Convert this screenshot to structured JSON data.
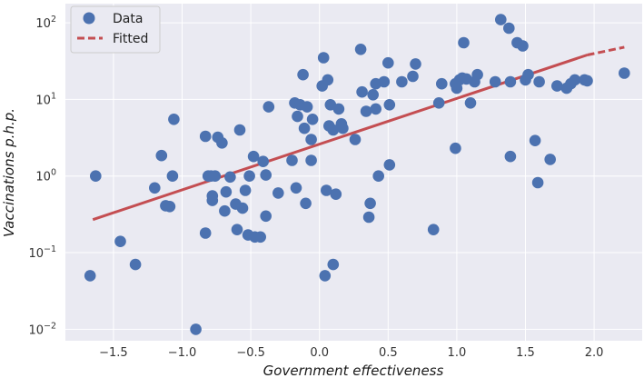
{
  "chart_data": {
    "type": "scatter",
    "xlabel": "Government effectiveness",
    "ylabel": "Vaccinations p.h.p.",
    "xlim": [
      -1.85,
      2.35
    ],
    "ylim_log10": [
      -2.15,
      2.25
    ],
    "y_scale": "log",
    "grid": true,
    "legend_position": "top-left",
    "x_ticks": [
      {
        "value": -1.5,
        "label": "−1.5"
      },
      {
        "value": -1.0,
        "label": "−1.0"
      },
      {
        "value": -0.5,
        "label": "−0.5"
      },
      {
        "value": 0.0,
        "label": "0.0"
      },
      {
        "value": 0.5,
        "label": "0.5"
      },
      {
        "value": 1.0,
        "label": "1.0"
      },
      {
        "value": 1.5,
        "label": "1.5"
      },
      {
        "value": 2.0,
        "label": "2.0"
      }
    ],
    "y_ticks": [
      {
        "value": 0.01,
        "base": "10",
        "exp": "−2"
      },
      {
        "value": 0.1,
        "base": "10",
        "exp": "−1"
      },
      {
        "value": 1,
        "base": "10",
        "exp": "0"
      },
      {
        "value": 10,
        "base": "10",
        "exp": "1"
      },
      {
        "value": 100,
        "base": "10",
        "exp": "2"
      }
    ],
    "series": [
      {
        "name": "Data",
        "kind": "scatter",
        "color": "#4c72b0",
        "points": [
          [
            -1.67,
            0.05
          ],
          [
            -1.63,
            1.0
          ],
          [
            -1.45,
            0.14
          ],
          [
            -1.34,
            0.07
          ],
          [
            -1.2,
            0.7
          ],
          [
            -1.15,
            1.85
          ],
          [
            -1.12,
            0.41
          ],
          [
            -1.09,
            0.4
          ],
          [
            -1.07,
            1.0
          ],
          [
            -1.06,
            5.5
          ],
          [
            -0.9,
            0.01
          ],
          [
            -0.83,
            3.3
          ],
          [
            -0.83,
            0.18
          ],
          [
            -0.81,
            1.0
          ],
          [
            -0.79,
            1.0
          ],
          [
            -0.78,
            0.55
          ],
          [
            -0.78,
            0.48
          ],
          [
            -0.76,
            1.0
          ],
          [
            -0.74,
            3.2
          ],
          [
            -0.71,
            2.7
          ],
          [
            -0.69,
            0.35
          ],
          [
            -0.68,
            0.62
          ],
          [
            -0.65,
            0.97
          ],
          [
            -0.61,
            0.43
          ],
          [
            -0.6,
            0.2
          ],
          [
            -0.58,
            4.0
          ],
          [
            -0.56,
            0.38
          ],
          [
            -0.54,
            0.65
          ],
          [
            -0.52,
            0.17
          ],
          [
            -0.51,
            1.0
          ],
          [
            -0.48,
            1.8
          ],
          [
            -0.47,
            0.16
          ],
          [
            -0.43,
            0.16
          ],
          [
            -0.41,
            1.55
          ],
          [
            -0.39,
            0.3
          ],
          [
            -0.39,
            1.03
          ],
          [
            -0.37,
            8.0
          ],
          [
            -0.3,
            0.6
          ],
          [
            -0.2,
            1.6
          ],
          [
            -0.18,
            9.0
          ],
          [
            -0.17,
            0.7
          ],
          [
            -0.16,
            6.0
          ],
          [
            -0.14,
            8.5
          ],
          [
            -0.12,
            21.0
          ],
          [
            -0.11,
            4.2
          ],
          [
            -0.1,
            0.44
          ],
          [
            -0.09,
            8.0
          ],
          [
            -0.06,
            1.6
          ],
          [
            -0.05,
            5.5
          ],
          [
            -0.06,
            3.0
          ],
          [
            0.02,
            15.0
          ],
          [
            0.03,
            35.0
          ],
          [
            0.05,
            0.65
          ],
          [
            0.04,
            0.05
          ],
          [
            0.06,
            18.0
          ],
          [
            0.07,
            4.5
          ],
          [
            0.08,
            8.5
          ],
          [
            0.1,
            4.0
          ],
          [
            0.1,
            0.07
          ],
          [
            0.12,
            0.58
          ],
          [
            0.14,
            7.5
          ],
          [
            0.16,
            4.8
          ],
          [
            0.17,
            4.2
          ],
          [
            0.26,
            3.0
          ],
          [
            0.3,
            45.0
          ],
          [
            0.31,
            12.5
          ],
          [
            0.34,
            7.0
          ],
          [
            0.36,
            0.29
          ],
          [
            0.37,
            0.44
          ],
          [
            0.39,
            11.5
          ],
          [
            0.41,
            16.0
          ],
          [
            0.41,
            7.5
          ],
          [
            0.43,
            1.0
          ],
          [
            0.47,
            17.0
          ],
          [
            0.5,
            30.0
          ],
          [
            0.51,
            1.4
          ],
          [
            0.51,
            8.5
          ],
          [
            0.6,
            17.0
          ],
          [
            0.68,
            20.0
          ],
          [
            0.7,
            29.0
          ],
          [
            0.83,
            0.2
          ],
          [
            0.87,
            9.0
          ],
          [
            0.89,
            16.0
          ],
          [
            0.99,
            2.3
          ],
          [
            0.99,
            16.0
          ],
          [
            1.0,
            14.0
          ],
          [
            1.02,
            18.0
          ],
          [
            1.04,
            19.0
          ],
          [
            1.05,
            55.0
          ],
          [
            1.07,
            18.5
          ],
          [
            1.1,
            9.0
          ],
          [
            1.13,
            17.0
          ],
          [
            1.15,
            21.0
          ],
          [
            1.28,
            17.0
          ],
          [
            1.32,
            110.0
          ],
          [
            1.38,
            85.0
          ],
          [
            1.39,
            1.8
          ],
          [
            1.39,
            17.0
          ],
          [
            1.44,
            55.0
          ],
          [
            1.48,
            50.0
          ],
          [
            1.5,
            18.0
          ],
          [
            1.52,
            21.0
          ],
          [
            1.57,
            2.9
          ],
          [
            1.59,
            0.82
          ],
          [
            1.6,
            17.0
          ],
          [
            1.68,
            1.65
          ],
          [
            1.73,
            15.0
          ],
          [
            1.8,
            14.0
          ],
          [
            1.83,
            16.0
          ],
          [
            1.86,
            18.0
          ],
          [
            1.93,
            18.0
          ],
          [
            1.95,
            17.5
          ],
          [
            2.22,
            22.0
          ]
        ]
      },
      {
        "name": "Fitted",
        "kind": "line",
        "style": "dashed",
        "color": "#c44e52",
        "x": [
          -1.65,
          1.95,
          2.22
        ],
        "y": [
          0.27,
          38.0,
          48.0
        ]
      }
    ]
  }
}
